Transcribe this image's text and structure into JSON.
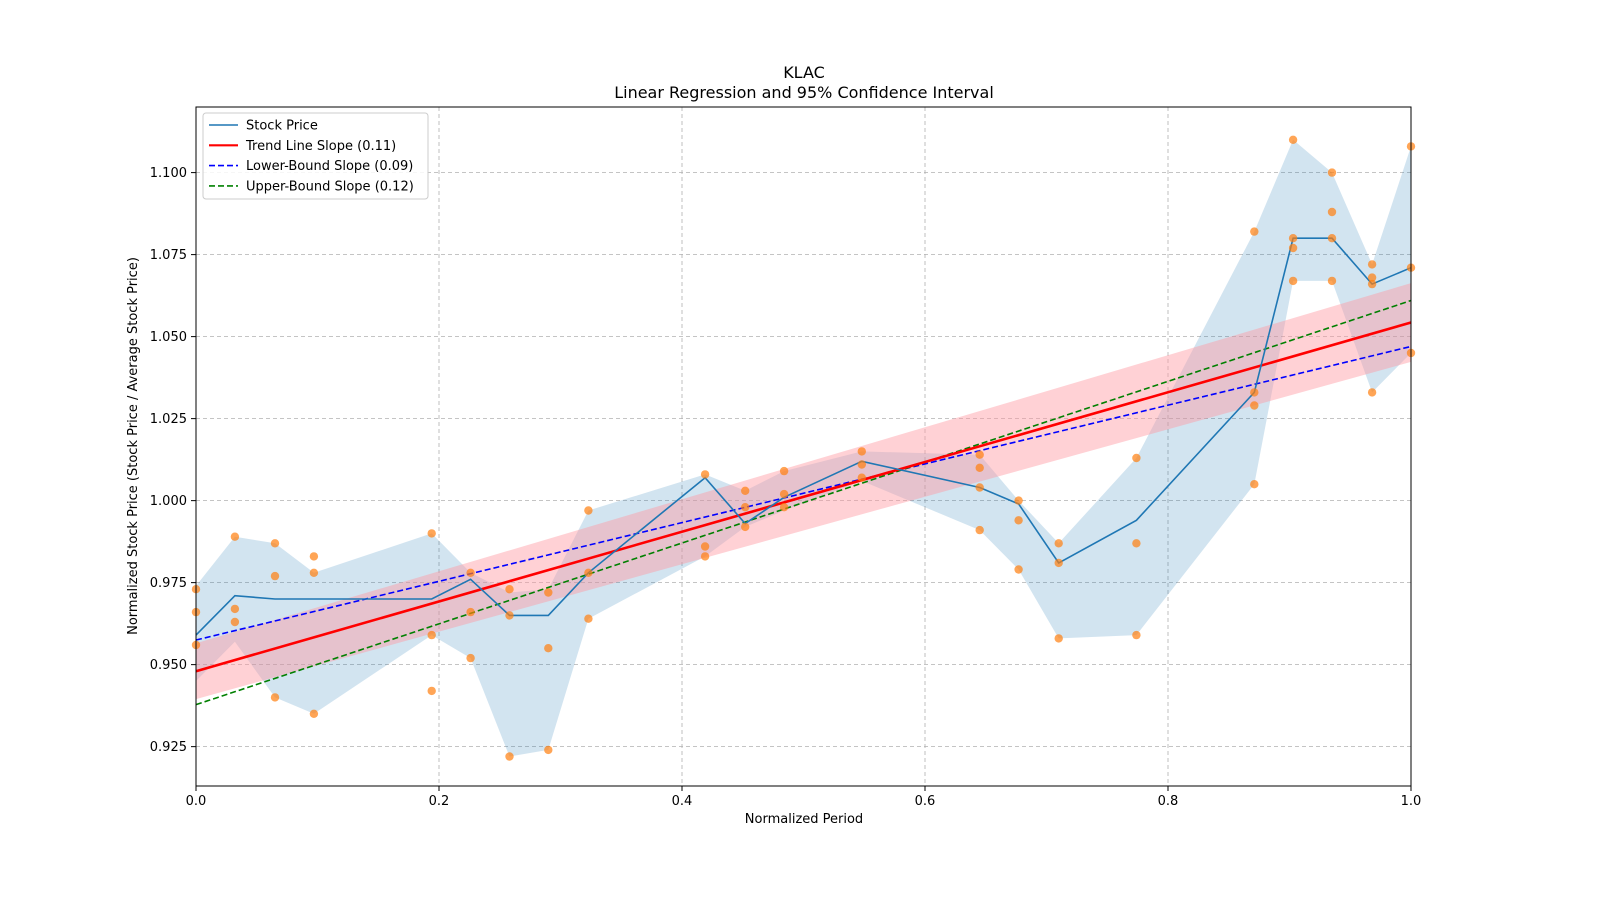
{
  "chart_data": {
    "type": "line",
    "title": "KLAC",
    "subtitle": "Linear Regression and 95% Confidence Interval",
    "xlabel": "Normalized Period",
    "ylabel": "Normalized Stock Price (Stock Price / Average Stock Price)",
    "xlim": [
      0.0,
      1.0
    ],
    "ylim": [
      0.913,
      1.12
    ],
    "grid": true,
    "legend_position": "top-left",
    "x_ticks": [
      "0.0",
      "0.2",
      "0.4",
      "0.6",
      "0.8",
      "1.0"
    ],
    "y_ticks": [
      "0.925",
      "0.950",
      "0.975",
      "1.000",
      "1.025",
      "1.050",
      "1.075",
      "1.100"
    ],
    "colors": {
      "stock": "#1f77b4",
      "band": "#1f77b4",
      "trend": "#ff0000",
      "trend_band": "#ff9aa2",
      "lower": "#0000ff",
      "upper": "#008000",
      "points": "#ff7f0e"
    },
    "series": [
      {
        "name": "Stock Price",
        "style": "solid",
        "x": [
          0.0,
          0.032,
          0.065,
          0.097,
          0.194,
          0.226,
          0.258,
          0.29,
          0.323,
          0.419,
          0.452,
          0.484,
          0.548,
          0.645,
          0.677,
          0.71,
          0.774,
          0.871,
          0.903,
          0.935,
          0.968,
          1.0
        ],
        "y": [
          0.959,
          0.971,
          0.97,
          0.97,
          0.97,
          0.976,
          0.965,
          0.965,
          0.978,
          1.007,
          0.993,
          1.001,
          1.012,
          1.004,
          0.999,
          0.981,
          0.994,
          1.033,
          1.08,
          1.08,
          1.066,
          1.071
        ],
        "band_upper": [
          0.974,
          0.989,
          0.987,
          0.978,
          0.99,
          0.978,
          0.972,
          0.973,
          0.997,
          1.008,
          1.003,
          1.009,
          1.015,
          1.014,
          1.0,
          0.987,
          1.013,
          1.082,
          1.11,
          1.1,
          1.072,
          1.108
        ],
        "band_lower": [
          0.945,
          0.957,
          0.94,
          0.935,
          0.959,
          0.952,
          0.922,
          0.924,
          0.964,
          0.983,
          0.992,
          0.997,
          1.006,
          0.991,
          0.979,
          0.958,
          0.959,
          1.005,
          1.067,
          1.067,
          1.033,
          1.045
        ]
      },
      {
        "name": "Trend Line Slope (0.11)",
        "style": "solid",
        "intercept": 0.948,
        "slope": 0.1063,
        "band_halfwidth_start": 0.0085,
        "band_halfwidth_end": 0.012
      },
      {
        "name": "Lower-Bound Slope (0.09)",
        "style": "dashed",
        "intercept": 0.9575,
        "slope": 0.0895
      },
      {
        "name": "Upper-Bound Slope (0.12)",
        "style": "dashed",
        "intercept": 0.9378,
        "slope": 0.1232
      }
    ],
    "scatter_points": [
      [
        0.0,
        0.973
      ],
      [
        0.0,
        0.966
      ],
      [
        0.0,
        0.956
      ],
      [
        0.032,
        0.989
      ],
      [
        0.032,
        0.967
      ],
      [
        0.032,
        0.963
      ],
      [
        0.065,
        0.987
      ],
      [
        0.065,
        0.977
      ],
      [
        0.065,
        0.94
      ],
      [
        0.097,
        0.983
      ],
      [
        0.097,
        0.978
      ],
      [
        0.097,
        0.935
      ],
      [
        0.194,
        0.99
      ],
      [
        0.194,
        0.959
      ],
      [
        0.194,
        0.942
      ],
      [
        0.226,
        0.978
      ],
      [
        0.226,
        0.966
      ],
      [
        0.226,
        0.952
      ],
      [
        0.258,
        0.973
      ],
      [
        0.258,
        0.965
      ],
      [
        0.258,
        0.922
      ],
      [
        0.29,
        0.972
      ],
      [
        0.29,
        0.955
      ],
      [
        0.29,
        0.924
      ],
      [
        0.323,
        0.997
      ],
      [
        0.323,
        0.978
      ],
      [
        0.323,
        0.964
      ],
      [
        0.419,
        1.008
      ],
      [
        0.419,
        0.986
      ],
      [
        0.419,
        0.983
      ],
      [
        0.452,
        1.003
      ],
      [
        0.452,
        0.998
      ],
      [
        0.452,
        0.992
      ],
      [
        0.484,
        1.009
      ],
      [
        0.484,
        1.002
      ],
      [
        0.484,
        0.998
      ],
      [
        0.548,
        1.015
      ],
      [
        0.548,
        1.011
      ],
      [
        0.548,
        1.007
      ],
      [
        0.645,
        1.014
      ],
      [
        0.645,
        1.01
      ],
      [
        0.645,
        1.004
      ],
      [
        0.645,
        0.991
      ],
      [
        0.677,
        1.0
      ],
      [
        0.677,
        0.994
      ],
      [
        0.677,
        0.979
      ],
      [
        0.71,
        0.987
      ],
      [
        0.71,
        0.981
      ],
      [
        0.71,
        0.958
      ],
      [
        0.774,
        1.013
      ],
      [
        0.774,
        0.987
      ],
      [
        0.774,
        0.959
      ],
      [
        0.871,
        1.082
      ],
      [
        0.871,
        1.033
      ],
      [
        0.871,
        1.029
      ],
      [
        0.871,
        1.005
      ],
      [
        0.903,
        1.11
      ],
      [
        0.903,
        1.08
      ],
      [
        0.903,
        1.077
      ],
      [
        0.903,
        1.067
      ],
      [
        0.935,
        1.1
      ],
      [
        0.935,
        1.088
      ],
      [
        0.935,
        1.08
      ],
      [
        0.935,
        1.067
      ],
      [
        0.968,
        1.072
      ],
      [
        0.968,
        1.068
      ],
      [
        0.968,
        1.066
      ],
      [
        0.968,
        1.033
      ],
      [
        1.0,
        1.108
      ],
      [
        1.0,
        1.071
      ],
      [
        1.0,
        1.045
      ]
    ]
  }
}
